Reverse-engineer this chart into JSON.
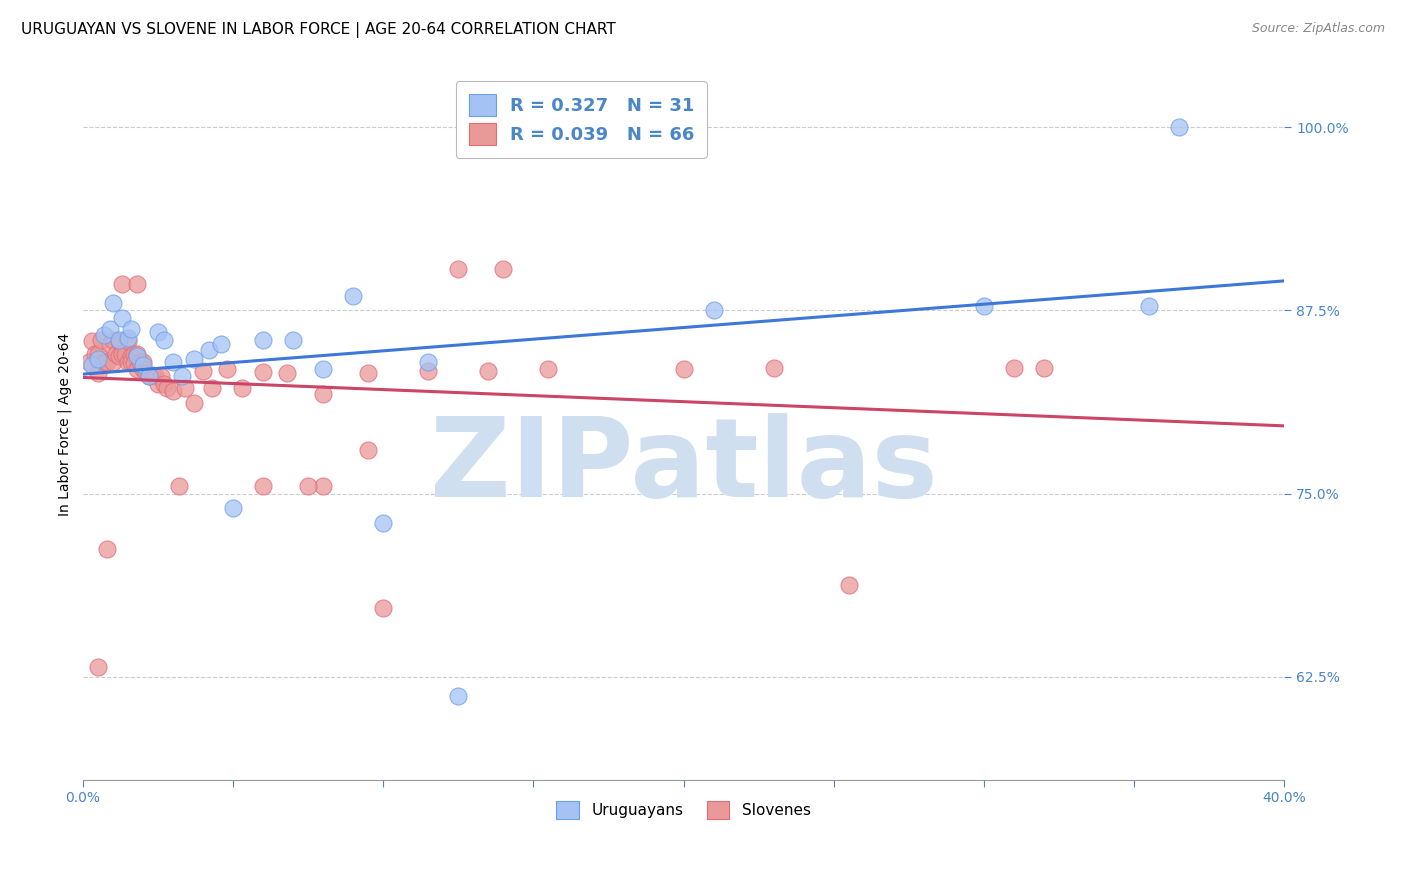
{
  "title": "URUGUAYAN VS SLOVENE IN LABOR FORCE | AGE 20-64 CORRELATION CHART",
  "source": "Source: ZipAtlas.com",
  "ylabel": "In Labor Force | Age 20-64",
  "xlim": [
    0.0,
    0.4
  ],
  "ylim": [
    0.555,
    1.04
  ],
  "yticks": [
    0.625,
    0.75,
    0.875,
    1.0
  ],
  "ytick_labels": [
    "62.5%",
    "75.0%",
    "87.5%",
    "100.0%"
  ],
  "xticks": [
    0.0,
    0.05,
    0.1,
    0.15,
    0.2,
    0.25,
    0.3,
    0.35,
    0.4
  ],
  "legend_label_blue": "Uruguayans",
  "legend_label_pink": "Slovenes",
  "blue_scatter_color": "#a4c2f4",
  "blue_edge_color": "#6d9eeb",
  "pink_scatter_color": "#ea9999",
  "pink_edge_color": "#e06c7a",
  "blue_line_color": "#3d78d8",
  "pink_line_color": "#cc4466",
  "watermark": "ZIPatlas",
  "watermark_color": "#d0dff0",
  "grid_color": "#cccccc",
  "title_fontsize": 11,
  "axis_label_fontsize": 10,
  "tick_fontsize": 10,
  "source_fontsize": 9,
  "uruguayan_x": [
    0.003,
    0.005,
    0.007,
    0.009,
    0.01,
    0.012,
    0.013,
    0.015,
    0.016,
    0.018,
    0.02,
    0.022,
    0.025,
    0.027,
    0.03,
    0.033,
    0.037,
    0.042,
    0.046,
    0.05,
    0.06,
    0.07,
    0.08,
    0.09,
    0.1,
    0.115,
    0.125,
    0.21,
    0.3,
    0.355,
    0.365
  ],
  "uruguayan_y": [
    0.838,
    0.842,
    0.858,
    0.862,
    0.88,
    0.855,
    0.87,
    0.856,
    0.862,
    0.844,
    0.838,
    0.83,
    0.86,
    0.855,
    0.84,
    0.83,
    0.842,
    0.848,
    0.852,
    0.74,
    0.855,
    0.855,
    0.835,
    0.885,
    0.73,
    0.84,
    0.612,
    0.875,
    0.878,
    0.878,
    1.0
  ],
  "slovene_x": [
    0.002,
    0.003,
    0.004,
    0.005,
    0.005,
    0.006,
    0.007,
    0.008,
    0.009,
    0.01,
    0.01,
    0.011,
    0.012,
    0.012,
    0.013,
    0.014,
    0.015,
    0.015,
    0.016,
    0.016,
    0.017,
    0.017,
    0.018,
    0.018,
    0.019,
    0.02,
    0.02,
    0.021,
    0.022,
    0.023,
    0.024,
    0.025,
    0.026,
    0.027,
    0.028,
    0.03,
    0.032,
    0.034,
    0.037,
    0.04,
    0.043,
    0.048,
    0.053,
    0.06,
    0.068,
    0.08,
    0.095,
    0.115,
    0.135,
    0.155,
    0.2,
    0.23,
    0.31,
    0.32,
    0.005,
    0.008,
    0.013,
    0.018,
    0.1,
    0.125,
    0.14,
    0.255,
    0.08,
    0.06,
    0.095,
    0.075
  ],
  "slovene_y": [
    0.84,
    0.854,
    0.845,
    0.832,
    0.845,
    0.855,
    0.84,
    0.84,
    0.852,
    0.855,
    0.84,
    0.845,
    0.854,
    0.844,
    0.845,
    0.845,
    0.854,
    0.84,
    0.844,
    0.84,
    0.845,
    0.839,
    0.845,
    0.835,
    0.84,
    0.84,
    0.835,
    0.832,
    0.83,
    0.831,
    0.83,
    0.825,
    0.83,
    0.825,
    0.822,
    0.82,
    0.755,
    0.822,
    0.812,
    0.834,
    0.822,
    0.835,
    0.822,
    0.833,
    0.832,
    0.818,
    0.832,
    0.834,
    0.834,
    0.835,
    0.835,
    0.836,
    0.836,
    0.836,
    0.632,
    0.712,
    0.893,
    0.893,
    0.672,
    0.903,
    0.903,
    0.688,
    0.755,
    0.755,
    0.78,
    0.755
  ]
}
